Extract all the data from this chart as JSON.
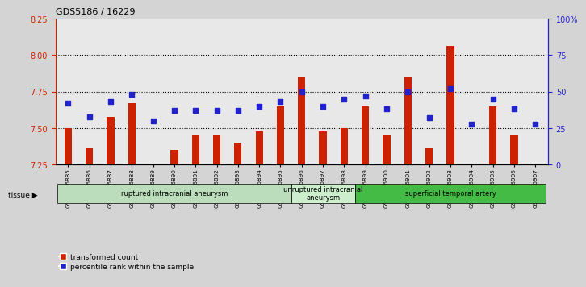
{
  "title": "GDS5186 / 16229",
  "samples": [
    "GSM1306885",
    "GSM1306886",
    "GSM1306887",
    "GSM1306888",
    "GSM1306889",
    "GSM1306890",
    "GSM1306891",
    "GSM1306892",
    "GSM1306893",
    "GSM1306894",
    "GSM1306895",
    "GSM1306896",
    "GSM1306897",
    "GSM1306898",
    "GSM1306899",
    "GSM1306900",
    "GSM1306901",
    "GSM1306902",
    "GSM1306903",
    "GSM1306904",
    "GSM1306905",
    "GSM1306906",
    "GSM1306907"
  ],
  "transformed_count": [
    7.5,
    7.36,
    7.58,
    7.67,
    7.255,
    7.35,
    7.45,
    7.45,
    7.4,
    7.48,
    7.65,
    7.85,
    7.48,
    7.5,
    7.65,
    7.45,
    7.85,
    7.36,
    8.06,
    7.255,
    7.65,
    7.45,
    7.255
  ],
  "percentile_rank": [
    42,
    33,
    43,
    48,
    30,
    37,
    37,
    37,
    37,
    40,
    43,
    50,
    40,
    45,
    47,
    38,
    50,
    32,
    52,
    28,
    45,
    38,
    28
  ],
  "ylim_left": [
    7.25,
    8.25
  ],
  "ylim_right": [
    0,
    100
  ],
  "yticks_left": [
    7.25,
    7.5,
    7.75,
    8.0,
    8.25
  ],
  "yticks_right": [
    0,
    25,
    50,
    75,
    100
  ],
  "ytick_labels_right": [
    "0",
    "25",
    "50",
    "75",
    "100%"
  ],
  "bar_color": "#cc2200",
  "dot_color": "#2222cc",
  "background_color": "#d4d4d4",
  "plot_bg_color": "#e8e8e8",
  "groups": [
    {
      "label": "ruptured intracranial aneurysm",
      "start": 0,
      "end": 11,
      "color": "#bbddbb"
    },
    {
      "label": "unruptured intracranial\naneurysm",
      "start": 11,
      "end": 14,
      "color": "#cceecc"
    },
    {
      "label": "superficial temporal artery",
      "start": 14,
      "end": 23,
      "color": "#44bb44"
    }
  ],
  "tissue_label": "tissue",
  "legend_bar_label": "transformed count",
  "legend_dot_label": "percentile rank within the sample",
  "dotted_lines": [
    7.5,
    7.75,
    8.0
  ],
  "bar_bottom": 7.25,
  "bar_width": 0.35
}
